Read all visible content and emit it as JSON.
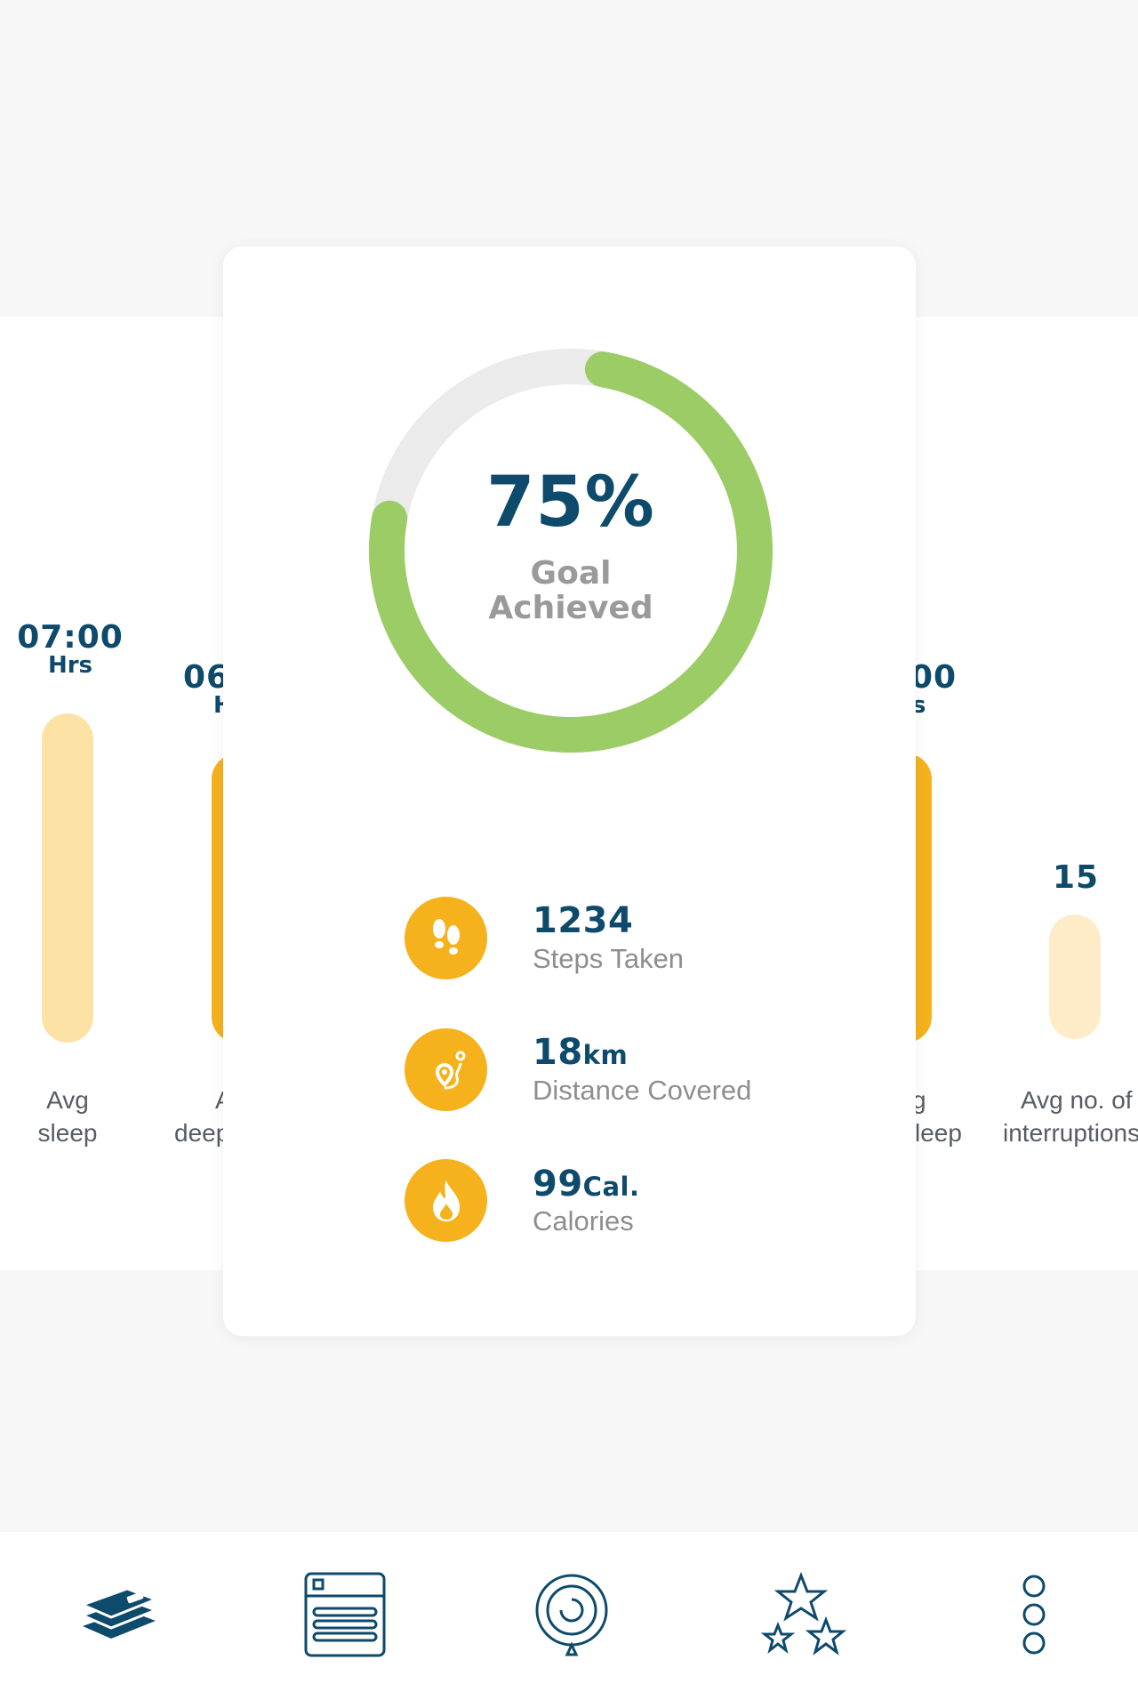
{
  "stats": [
    {
      "value": "07:00",
      "unit": "Hrs",
      "label_line1": "Avg",
      "label_line2": "sleep",
      "level": 1.0
    },
    {
      "value": "06",
      "unit": "H",
      "label_line1": "A",
      "label_line2": "deep",
      "level": 0.86
    },
    {
      "value": "00",
      "unit": "s",
      "label_line1": "g",
      "label_line2": "leep",
      "level": 0.86
    },
    {
      "value": "15",
      "unit": "",
      "label_line1": "Avg no. of",
      "label_line2": "interruptions",
      "level": 0.38
    }
  ],
  "goal": {
    "percent_text": "75%",
    "label_line1": "Goal",
    "label_line2": "Achieved",
    "progress": 0.75
  },
  "metrics": [
    {
      "value": "1234",
      "unit": "",
      "label": "Steps Taken",
      "icon": "footsteps-icon"
    },
    {
      "value": "18",
      "unit": "km",
      "label": "Distance Covered",
      "icon": "route-icon"
    },
    {
      "value": "99",
      "unit": "Cal.",
      "label": "Calories",
      "icon": "flame-icon"
    }
  ],
  "nav": [
    {
      "name": "layers-icon"
    },
    {
      "name": "newspaper-icon"
    },
    {
      "name": "target-icon"
    },
    {
      "name": "stars-icon"
    },
    {
      "name": "more-icon"
    }
  ],
  "colors": {
    "navy": "#0d4a6b",
    "accent": "#f5b21d",
    "green": "#9ccc65",
    "bar_light": "#fde2a6",
    "bar_lighter": "#feecc9"
  }
}
